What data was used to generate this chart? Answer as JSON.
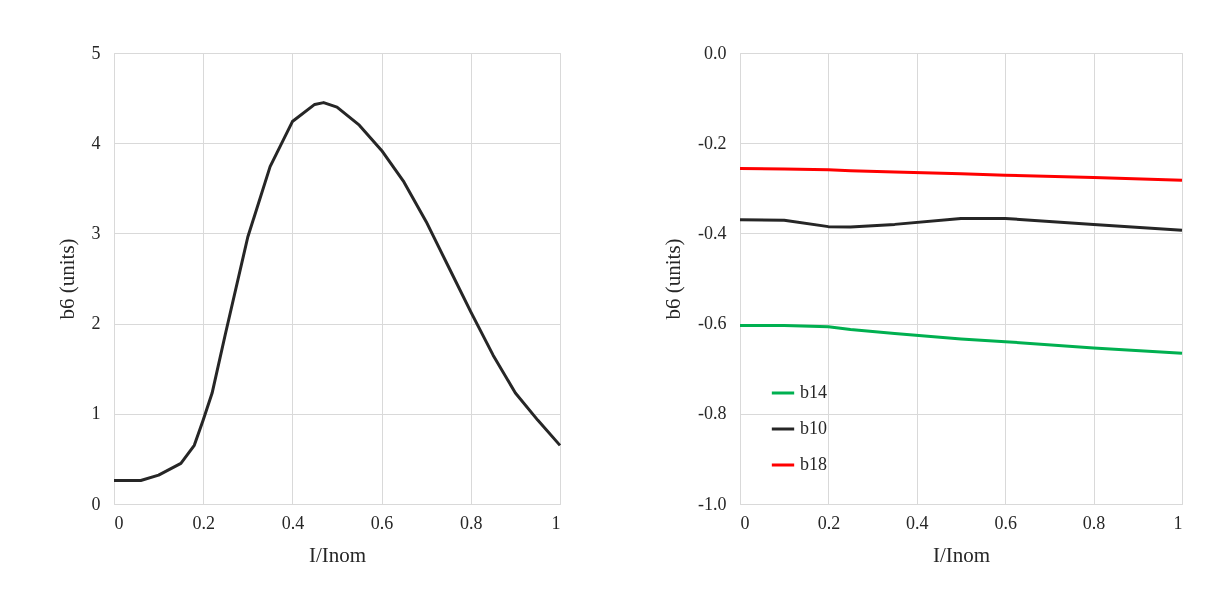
{
  "chart_data": [
    {
      "type": "line",
      "xlabel": "I/Inom",
      "ylabel": "b6 (units)",
      "x": [
        0,
        0.06,
        0.1,
        0.15,
        0.18,
        0.2,
        0.22,
        0.25,
        0.3,
        0.35,
        0.4,
        0.45,
        0.47,
        0.5,
        0.55,
        0.6,
        0.65,
        0.7,
        0.75,
        0.8,
        0.85,
        0.9,
        0.95,
        1
      ],
      "series": [
        {
          "color": "#262626",
          "values": [
            0.26,
            0.26,
            0.32,
            0.45,
            0.65,
            0.93,
            1.23,
            1.89,
            2.96,
            3.74,
            4.24,
            4.43,
            4.45,
            4.4,
            4.2,
            3.92,
            3.57,
            3.13,
            2.63,
            2.13,
            1.65,
            1.23,
            0.93,
            0.65
          ]
        }
      ],
      "xlim": [
        0,
        1
      ],
      "xticks": [
        0,
        0.2,
        0.4,
        0.6,
        0.8,
        1
      ],
      "ylim": [
        0,
        5
      ],
      "yticks": [
        0,
        1,
        2,
        3,
        4,
        5
      ],
      "grid": true,
      "marker": "none",
      "line_style": "solid"
    },
    {
      "type": "line",
      "xlabel": "I/Inom",
      "ylabel": "b6 (units)",
      "x": [
        0,
        0.1,
        0.2,
        0.25,
        0.35,
        0.5,
        0.6,
        0.8,
        1
      ],
      "series": [
        {
          "name": "b14",
          "color": "#00b050",
          "values": [
            -0.604,
            -0.604,
            -0.607,
            -0.613,
            -0.622,
            -0.634,
            -0.64,
            -0.654,
            -0.666
          ]
        },
        {
          "name": "b10",
          "color": "#262626",
          "values": [
            -0.37,
            -0.371,
            -0.385,
            -0.386,
            -0.38,
            -0.367,
            -0.367,
            -0.38,
            -0.393
          ]
        },
        {
          "name": "b18",
          "color": "#ff0000",
          "values": [
            -0.256,
            -0.257,
            -0.259,
            -0.261,
            -0.264,
            -0.268,
            -0.271,
            -0.276,
            -0.282
          ]
        }
      ],
      "xlim": [
        0,
        1
      ],
      "xticks": [
        0,
        0.2,
        0.4,
        0.6,
        0.8,
        1
      ],
      "ylim": [
        -1,
        0
      ],
      "yticks": [
        {
          "value": -1,
          "label": "-1.0"
        },
        {
          "value": -0.8,
          "label": "-0.8"
        },
        {
          "value": -0.6,
          "label": "-0.6"
        },
        {
          "value": -0.4,
          "label": "-0.4"
        },
        {
          "value": -0.2,
          "label": "-0.2"
        },
        {
          "value": 0,
          "label": "0.0"
        }
      ],
      "grid": true,
      "legend": "bottom left",
      "marker": "none",
      "line_style": "solid"
    }
  ]
}
